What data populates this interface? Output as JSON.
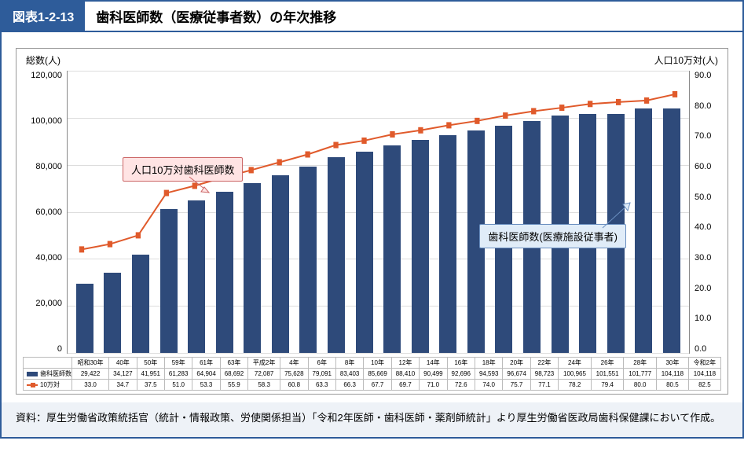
{
  "title_tag": "図表1-2-13",
  "title_text": "歯科医師数（医療従事者数）の年次推移",
  "y_left_label": "総数(人)",
  "y_right_label": "人口10万対(人)",
  "callout_line": "人口10万対歯科医師数",
  "callout_bar": "歯科医師数(医療施設従事者)",
  "footnote": "資料：厚生労働省政策統括官（統計・情報政策、労使関係担当）「令和2年医師・歯科医師・薬剤師統計」より厚生労働省医政局歯科保健課において作成。",
  "legend_bar": "歯科医師数",
  "legend_line": "10万対",
  "chart": {
    "type": "bar+line",
    "y_left": {
      "min": 0,
      "max": 120000,
      "step": 20000,
      "ticks": [
        "120,000",
        "100,000",
        "80,000",
        "60,000",
        "40,000",
        "20,000",
        "0"
      ]
    },
    "y_right": {
      "min": 0,
      "max": 90,
      "step": 10,
      "ticks": [
        "90.0",
        "80.0",
        "70.0",
        "60.0",
        "50.0",
        "40.0",
        "30.0",
        "20.0",
        "10.0",
        "0.0"
      ]
    },
    "categories": [
      "昭和30年",
      "40年",
      "50年",
      "59年",
      "61年",
      "63年",
      "平成2年",
      "4年",
      "6年",
      "8年",
      "10年",
      "12年",
      "14年",
      "16年",
      "18年",
      "20年",
      "22年",
      "24年",
      "26年",
      "28年",
      "30年",
      "令和2年"
    ],
    "bar_values": [
      29422,
      34127,
      41951,
      61283,
      64904,
      68692,
      72087,
      75628,
      79091,
      83403,
      85669,
      88410,
      90499,
      92696,
      94593,
      96674,
      98723,
      100965,
      101551,
      101777,
      104118,
      104118
    ],
    "bar_labels": [
      "29,422",
      "34,127",
      "41,951",
      "61,283",
      "64,904",
      "68,692",
      "72,087",
      "75,628",
      "79,091",
      "83,403",
      "85,669",
      "88,410",
      "90,499",
      "92,696",
      "94,593",
      "96,674",
      "98,723",
      "100,965",
      "101,551",
      "101,777",
      "104,118",
      "104,118"
    ],
    "line_values": [
      33.0,
      34.7,
      37.5,
      51.0,
      53.3,
      55.9,
      58.3,
      60.8,
      63.3,
      66.3,
      67.7,
      69.7,
      71.0,
      72.6,
      74.0,
      75.7,
      77.1,
      78.2,
      79.4,
      80.0,
      80.5,
      82.5
    ],
    "line_labels": [
      "33.0",
      "34.7",
      "37.5",
      "51.0",
      "53.3",
      "55.9",
      "58.3",
      "60.8",
      "63.3",
      "66.3",
      "67.7",
      "69.7",
      "71.0",
      "72.6",
      "74.0",
      "75.7",
      "77.1",
      "78.2",
      "79.4",
      "80.0",
      "80.5",
      "82.5"
    ],
    "bar_color": "#2e4a7a",
    "line_color": "#e05a2b",
    "grid_color": "#dddddd",
    "background": "#ffffff"
  }
}
